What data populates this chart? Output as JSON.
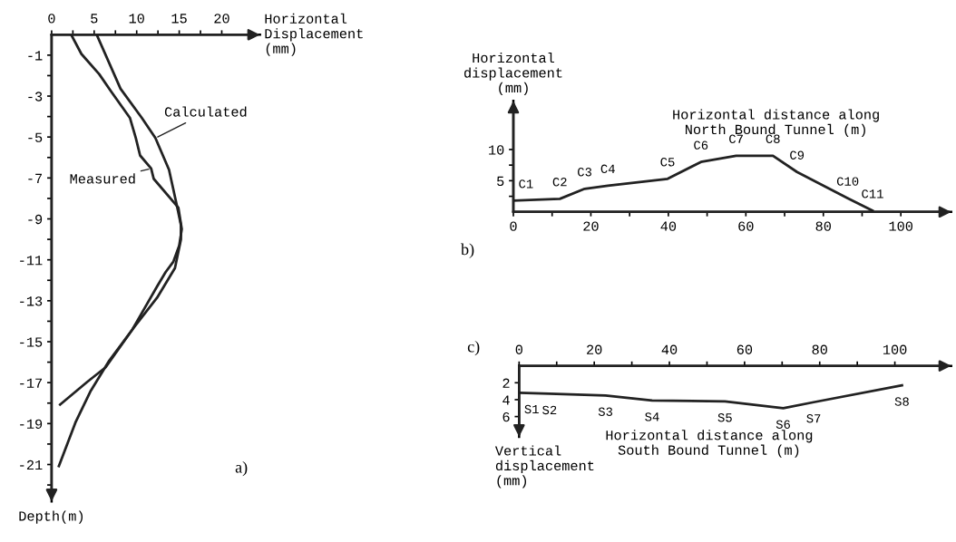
{
  "chart_data": [
    {
      "type": "line",
      "xlabel": "Horizontal\nDisplacement\n(mm)",
      "ylabel": "Depth(m)",
      "xlim": [
        0,
        24.5
      ],
      "ylim": [
        -22.8,
        0
      ],
      "xticks": [
        0,
        {
          "value": 2.5,
          "label": null
        },
        5,
        {
          "value": 7.5,
          "label": null
        },
        10,
        {
          "value": 12.5,
          "label": null
        },
        15,
        {
          "value": 17.5,
          "label": null
        },
        20
      ],
      "yticks": [
        -1,
        {
          "value": -2,
          "label": null
        },
        -3,
        {
          "value": -4,
          "label": null
        },
        -5,
        {
          "value": -6,
          "label": null
        },
        -7,
        {
          "value": -8,
          "label": null
        },
        -9,
        {
          "value": -10,
          "label": null
        },
        -11,
        {
          "value": -12,
          "label": null
        },
        -13,
        {
          "value": -14,
          "label": null
        },
        -15,
        {
          "value": -16,
          "label": null
        },
        -17,
        {
          "value": -18,
          "label": null
        },
        -19,
        {
          "value": -20,
          "label": null
        },
        -21,
        {
          "value": -22,
          "label": null
        }
      ],
      "series": [
        {
          "name": "Measured",
          "color": "#222222",
          "x": [
            2.3,
            3.5,
            5.6,
            7.0,
            9.2,
            9.9,
            10.4,
            11.7,
            12.0,
            14.9,
            15.3,
            15.0,
            14.3,
            13.4,
            12.4,
            10.6,
            9.5,
            6.35,
            4.2,
            1.0
          ],
          "values": [
            0,
            -0.94,
            -1.93,
            -2.78,
            -4.06,
            -5.05,
            -5.9,
            -6.54,
            -7.04,
            -8.45,
            -9.5,
            -10.3,
            -11.1,
            -11.6,
            -12.3,
            -13.6,
            -14.4,
            -16.25,
            -16.96,
            -18.07
          ]
        },
        {
          "name": "Calculated",
          "color": "#222222",
          "x": [
            5.3,
            8.1,
            10.6,
            12.2,
            13.8,
            14.7,
            15.2,
            15.2,
            14.5,
            12.4,
            9.5,
            6.7,
            4.6,
            2.8,
            0.85
          ],
          "values": [
            0,
            -2.64,
            -4.06,
            -5.05,
            -6.6,
            -8.3,
            -9.3,
            -10.0,
            -11.4,
            -12.85,
            -14.4,
            -15.97,
            -17.4,
            -18.95,
            -21.08
          ]
        }
      ],
      "annotations": [
        "a)"
      ]
    },
    {
      "type": "line",
      "xlabel": "Horizontal distance along\nNorth Bound Tunnel (m)",
      "ylabel": "Horizontal\ndisplacement\n(mm)",
      "xlim": [
        0,
        113
      ],
      "ylim": [
        0,
        17.8
      ],
      "xticks": [
        0,
        {
          "value": 10,
          "label": null
        },
        20,
        {
          "value": 30,
          "label": null
        },
        40,
        {
          "value": 50,
          "label": null
        },
        60,
        {
          "value": 70,
          "label": null
        },
        80,
        {
          "value": 90,
          "label": null
        },
        100
      ],
      "yticks": [
        {
          "value": 2.5,
          "label": null
        },
        5,
        {
          "value": 7.5,
          "label": null
        },
        10
      ],
      "x": [
        0,
        12.0,
        18.4,
        24.4,
        39.8,
        48.4,
        57.5,
        67.0,
        73.2,
        86.3,
        92.7
      ],
      "values": [
        1.8,
        2.1,
        3.7,
        4.2,
        5.3,
        8.0,
        9.0,
        9.0,
        6.4,
        2.2,
        0.2
      ],
      "color": "#222222",
      "annotations": [
        "b)",
        {
          "text": "C1",
          "x": 0,
          "y": 1.8
        },
        {
          "text": "C2",
          "x": 12.0,
          "y": 2.1
        },
        {
          "text": "C3",
          "x": 18.4,
          "y": 3.7
        },
        {
          "text": "C4",
          "x": 24.4,
          "y": 4.2
        },
        {
          "text": "C5",
          "x": 39.8,
          "y": 5.3
        },
        {
          "text": "C6",
          "x": 48.4,
          "y": 8.0
        },
        {
          "text": "C7",
          "x": 57.5,
          "y": 9.0
        },
        {
          "text": "C8",
          "x": 67.0,
          "y": 9.0
        },
        {
          "text": "C9",
          "x": 73.2,
          "y": 6.4
        },
        {
          "text": "C10",
          "x": 86.3,
          "y": 2.2
        },
        {
          "text": "C11",
          "x": 92.7,
          "y": 0.2
        }
      ]
    },
    {
      "type": "line",
      "xlabel": "Horizontal distance along\nSouth Bound Tunnel (m)",
      "ylabel": "Vertical\ndisplacement\n(mm)",
      "xlim": [
        0,
        115
      ],
      "ylim": [
        8.4,
        0
      ],
      "xticks": [
        0,
        {
          "value": 10,
          "label": null
        },
        20,
        {
          "value": 30,
          "label": null
        },
        40,
        {
          "value": 50,
          "label": null
        },
        60,
        {
          "value": 70,
          "label": null
        },
        80,
        {
          "value": 90,
          "label": null
        },
        100
      ],
      "yticks": [
        2,
        4,
        6
      ],
      "x": [
        0,
        8.1,
        23.0,
        35.4,
        54.8,
        70.3,
        78.4,
        101.9
      ],
      "values": [
        3.2,
        3.3,
        3.5,
        4.1,
        4.2,
        5.0,
        4.3,
        2.3
      ],
      "color": "#222222",
      "annotations": [
        "c)",
        {
          "text": "S1",
          "x": 0,
          "y": 3.2
        },
        {
          "text": "S2",
          "x": 8.1,
          "y": 3.3
        },
        {
          "text": "S3",
          "x": 23.0,
          "y": 3.5
        },
        {
          "text": "S4",
          "x": 35.4,
          "y": 4.1
        },
        {
          "text": "S5",
          "x": 54.8,
          "y": 4.2
        },
        {
          "text": "S6",
          "x": 70.3,
          "y": 5.0
        },
        {
          "text": "S7",
          "x": 78.4,
          "y": 4.3
        },
        {
          "text": "S8",
          "x": 101.9,
          "y": 2.3
        }
      ]
    }
  ]
}
